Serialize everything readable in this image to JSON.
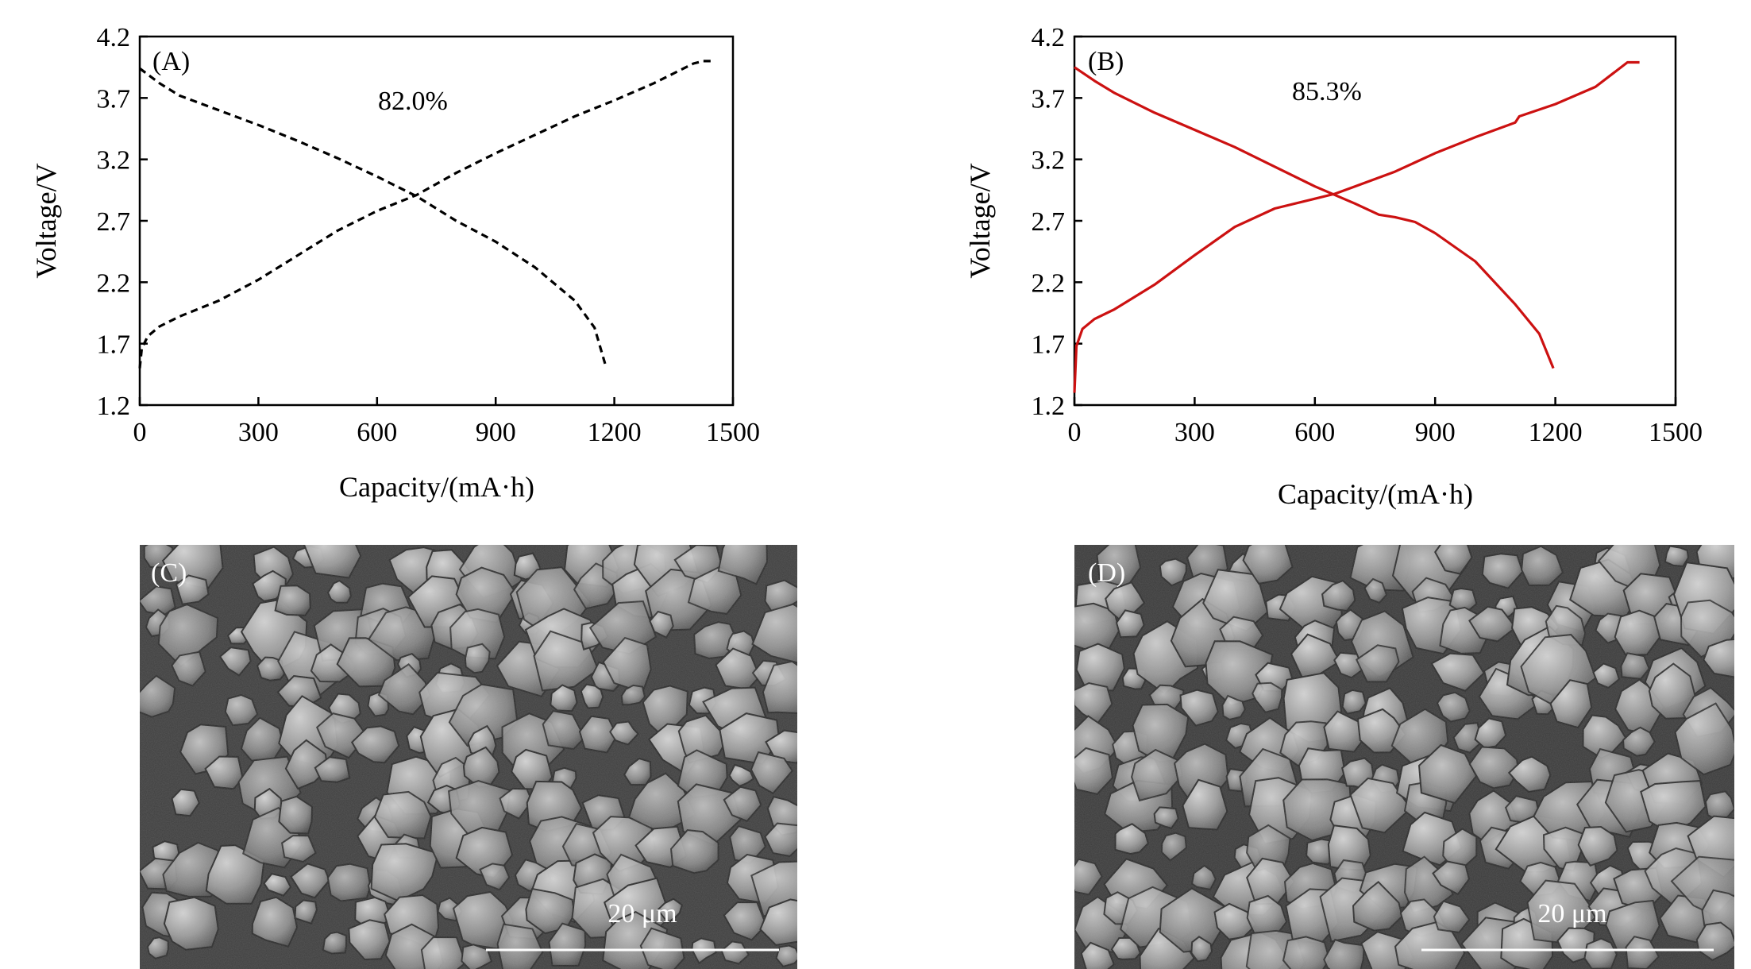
{
  "chart_data": [
    {
      "type": "line",
      "panel_label": "(A)",
      "annotation": "82.0%",
      "xlabel": "Capacity/(mA·h)",
      "ylabel": "Voltage/V",
      "xlim": [
        0,
        1500
      ],
      "ylim": [
        1.2,
        4.2
      ],
      "xticks": [
        "0",
        "300",
        "600",
        "900",
        "1200",
        "1500"
      ],
      "yticks": [
        "4.2",
        "3.7",
        "3.2",
        "2.7",
        "2.2",
        "1.7",
        "1.2"
      ],
      "line_style": "dashed",
      "color": "#000000",
      "series": [
        {
          "points": [
            [
              0,
              1.5
            ],
            [
              5,
              1.66
            ],
            [
              20,
              1.76
            ],
            [
              50,
              1.84
            ],
            [
              100,
              1.92
            ],
            [
              200,
              2.05
            ],
            [
              300,
              2.22
            ],
            [
              400,
              2.42
            ],
            [
              500,
              2.62
            ],
            [
              600,
              2.78
            ],
            [
              700,
              2.91
            ],
            [
              800,
              3.09
            ],
            [
              900,
              3.25
            ],
            [
              1000,
              3.4
            ],
            [
              1100,
              3.55
            ],
            [
              1200,
              3.68
            ],
            [
              1300,
              3.82
            ],
            [
              1400,
              3.98
            ],
            [
              1425,
              4.0
            ],
            [
              1450,
              4.0
            ]
          ]
        },
        {
          "points": [
            [
              0,
              3.94
            ],
            [
              50,
              3.82
            ],
            [
              100,
              3.72
            ],
            [
              200,
              3.6
            ],
            [
              300,
              3.48
            ],
            [
              400,
              3.35
            ],
            [
              500,
              3.21
            ],
            [
              600,
              3.06
            ],
            [
              700,
              2.9
            ],
            [
              800,
              2.7
            ],
            [
              900,
              2.53
            ],
            [
              1000,
              2.32
            ],
            [
              1100,
              2.05
            ],
            [
              1150,
              1.83
            ],
            [
              1180,
              1.5
            ]
          ]
        }
      ]
    },
    {
      "type": "line",
      "panel_label": "(B)",
      "annotation": "85.3%",
      "xlabel": "Capacity/(mA·h)",
      "ylabel": "Voltage/V",
      "xlim": [
        0,
        1500
      ],
      "ylim": [
        1.2,
        4.2
      ],
      "xticks": [
        "0",
        "300",
        "600",
        "900",
        "1200",
        "1500"
      ],
      "yticks": [
        "4.2",
        "3.7",
        "3.2",
        "2.7",
        "2.2",
        "1.7",
        "1.2"
      ],
      "line_style": "solid",
      "color": "#cc1111",
      "series": [
        {
          "points": [
            [
              0,
              1.3
            ],
            [
              5,
              1.68
            ],
            [
              20,
              1.82
            ],
            [
              50,
              1.9
            ],
            [
              100,
              1.98
            ],
            [
              200,
              2.18
            ],
            [
              300,
              2.42
            ],
            [
              400,
              2.65
            ],
            [
              500,
              2.8
            ],
            [
              600,
              2.88
            ],
            [
              650,
              2.92
            ],
            [
              700,
              2.98
            ],
            [
              800,
              3.1
            ],
            [
              900,
              3.25
            ],
            [
              1000,
              3.38
            ],
            [
              1100,
              3.5
            ],
            [
              1110,
              3.55
            ],
            [
              1200,
              3.65
            ],
            [
              1300,
              3.79
            ],
            [
              1380,
              3.99
            ],
            [
              1410,
              3.99
            ]
          ]
        },
        {
          "points": [
            [
              0,
              3.95
            ],
            [
              50,
              3.84
            ],
            [
              100,
              3.74
            ],
            [
              200,
              3.58
            ],
            [
              300,
              3.44
            ],
            [
              400,
              3.3
            ],
            [
              500,
              3.14
            ],
            [
              600,
              2.98
            ],
            [
              700,
              2.84
            ],
            [
              760,
              2.75
            ],
            [
              800,
              2.73
            ],
            [
              850,
              2.69
            ],
            [
              900,
              2.6
            ],
            [
              1000,
              2.37
            ],
            [
              1100,
              2.02
            ],
            [
              1160,
              1.78
            ],
            [
              1195,
              1.5
            ]
          ]
        }
      ]
    }
  ],
  "sem_images": [
    {
      "panel_label": "(C)",
      "scale_label": "20 μm",
      "seed": 7
    },
    {
      "panel_label": "(D)",
      "scale_label": "20 μm",
      "seed": 23
    }
  ]
}
